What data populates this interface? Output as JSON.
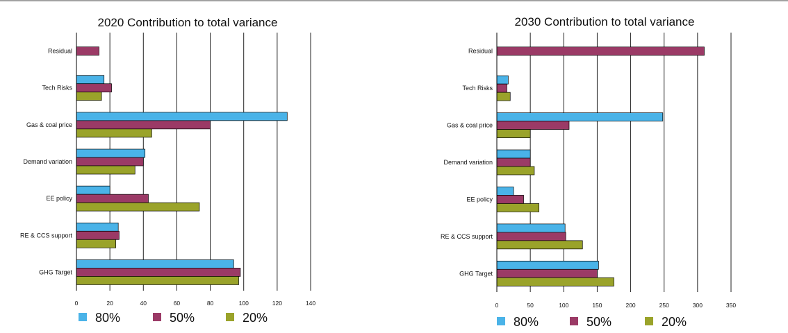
{
  "chart_data": [
    {
      "type": "bar",
      "orientation": "horizontal",
      "title": "2020 Contribution to total variance",
      "categories": [
        "Residual",
        "Tech Risks",
        "Gas & coal price",
        "Demand variation",
        "EE policy",
        "RE & CCS support",
        "GHG Target"
      ],
      "series": [
        {
          "name": "80%",
          "color": "#4ab3e8",
          "values": [
            0,
            16.5,
            126,
            41,
            20,
            25,
            94
          ]
        },
        {
          "name": "50%",
          "color": "#9b3a66",
          "values": [
            13.5,
            21,
            80,
            40,
            43,
            25.5,
            98
          ]
        },
        {
          "name": "20%",
          "color": "#9aa32a",
          "values": [
            0,
            15,
            45,
            35,
            73.5,
            23.5,
            97
          ]
        }
      ],
      "xlim": [
        0,
        140
      ],
      "xticks": [
        0,
        20,
        40,
        60,
        80,
        100,
        120,
        140
      ],
      "grid": true,
      "legend": "bottom"
    },
    {
      "type": "bar",
      "orientation": "horizontal",
      "title": "2030 Contribution to total variance",
      "categories": [
        "Residual",
        "Tech Risks",
        "Gas & coal price",
        "Demand variation",
        "EE policy",
        "RE & CCS support",
        "GHG Target"
      ],
      "series": [
        {
          "name": "80%",
          "color": "#4ab3e8",
          "values": [
            0,
            17,
            248,
            50,
            25,
            102,
            152
          ]
        },
        {
          "name": "50%",
          "color": "#9b3a66",
          "values": [
            310,
            15,
            108,
            50,
            40,
            103,
            150
          ]
        },
        {
          "name": "20%",
          "color": "#9aa32a",
          "values": [
            0,
            20,
            50,
            56,
            63,
            128,
            175
          ]
        }
      ],
      "xlim": [
        0,
        350
      ],
      "xticks": [
        0,
        50,
        100,
        150,
        200,
        250,
        300,
        350
      ],
      "grid": true,
      "legend": "bottom"
    }
  ]
}
